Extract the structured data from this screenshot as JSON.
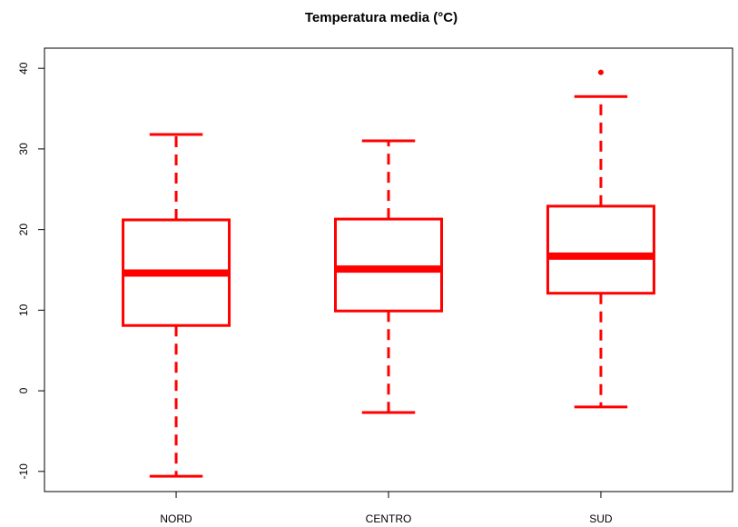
{
  "chart_data": {
    "type": "boxplot",
    "title": "Temperatura media (°C)",
    "xlabel": "",
    "ylabel": "",
    "ylim": [
      -12.5,
      42.5
    ],
    "yticks": [
      -10,
      0,
      10,
      20,
      30,
      40
    ],
    "ytick_labels": [
      "-10",
      "0",
      "10",
      "20",
      "30",
      "40"
    ],
    "categories": [
      "NORD",
      "CENTRO",
      "SUD"
    ],
    "color": "#ff0000",
    "boxes": [
      {
        "category": "NORD",
        "whisker_low": -10.6,
        "q1": 8.1,
        "median": 14.6,
        "q3": 21.2,
        "whisker_high": 31.8,
        "outliers": []
      },
      {
        "category": "CENTRO",
        "whisker_low": -2.7,
        "q1": 9.9,
        "median": 15.1,
        "q3": 21.3,
        "whisker_high": 31.0,
        "outliers": []
      },
      {
        "category": "SUD",
        "whisker_low": -2.0,
        "q1": 12.1,
        "median": 16.7,
        "q3": 22.9,
        "whisker_high": 36.5,
        "outliers": [
          39.5
        ]
      }
    ],
    "grid": false,
    "legend": "none"
  }
}
